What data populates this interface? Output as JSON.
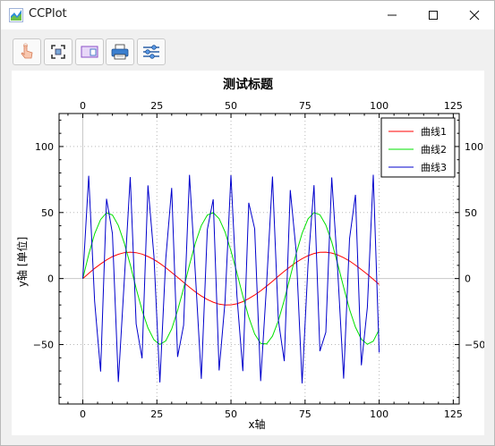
{
  "window": {
    "title": "CCPlot"
  },
  "toolbar": {
    "tools": [
      {
        "name": "pointer-icon"
      },
      {
        "name": "fit-view-icon"
      },
      {
        "name": "layout-icon"
      },
      {
        "name": "print-icon"
      },
      {
        "name": "settings-sliders-icon"
      }
    ]
  },
  "chart_data": {
    "type": "line",
    "title": "测试标题",
    "xlabel": "x轴",
    "ylabel": "y轴 [单位]",
    "xlim": [
      -8,
      127
    ],
    "ylim": [
      -95,
      125
    ],
    "x_ticks": [
      0,
      25,
      50,
      75,
      100,
      125
    ],
    "y_ticks": [
      -50,
      0,
      50,
      100
    ],
    "x_tick_labels": [
      "0",
      "25",
      "50",
      "75",
      "100",
      "125"
    ],
    "y_tick_labels": [
      "−50",
      "0",
      "50",
      "100"
    ],
    "grid": true,
    "legend_position": "top-right",
    "x": [
      0,
      2,
      4,
      6,
      8,
      10,
      12,
      14,
      16,
      18,
      20,
      22,
      24,
      26,
      28,
      30,
      32,
      34,
      36,
      38,
      40,
      42,
      44,
      46,
      48,
      50,
      52,
      54,
      56,
      58,
      60,
      62,
      64,
      66,
      68,
      70,
      72,
      74,
      76,
      78,
      80,
      82,
      84,
      86,
      88,
      90,
      92,
      94,
      96,
      98,
      100
    ],
    "series": [
      {
        "name": "曲线1",
        "color": "#ff0000",
        "values": [
          0,
          3.9,
          7.7,
          11.1,
          14.1,
          16.6,
          18.4,
          19.6,
          20.0,
          19.6,
          18.5,
          16.7,
          14.4,
          11.5,
          8.2,
          4.6,
          0.9,
          -2.9,
          -6.6,
          -10.1,
          -13.2,
          -15.9,
          -17.9,
          -19.4,
          -20.0,
          -19.9,
          -19.1,
          -17.5,
          -15.2,
          -12.5,
          -9.3,
          -5.8,
          -2.1,
          1.8,
          5.5,
          9.0,
          12.3,
          15.1,
          17.3,
          19.0,
          19.9,
          20.0,
          19.3,
          17.9,
          15.8,
          13.3,
          10.2,
          6.8,
          3.2,
          -0.6,
          -4.4
        ]
      },
      {
        "name": "曲线2",
        "color": "#00e000",
        "values": [
          0,
          18.2,
          33.8,
          44.7,
          49.8,
          48.2,
          40.2,
          27.0,
          10.5,
          -7.4,
          -24.0,
          -37.4,
          -46.4,
          -49.9,
          -47.2,
          -38.2,
          -24.2,
          -7.5,
          10.4,
          26.9,
          40.1,
          48.1,
          49.9,
          45.4,
          35.4,
          21.0,
          4.3,
          -13.2,
          -29.2,
          -42.0,
          -49.2,
          -49.5,
          -43.6,
          -32.0,
          -16.2,
          1.5,
          19.0,
          34.2,
          45.2,
          49.9,
          48.3,
          40.6,
          27.7,
          11.2,
          -6.6,
          -23.3,
          -36.8,
          -45.9,
          -49.8,
          -47.4,
          -38.6
        ]
      },
      {
        "name": "曲线3",
        "color": "#0000cc",
        "values": [
          0,
          77.9,
          -17.1,
          -70.4,
          60.4,
          34.1,
          -78.3,
          -1.9,
          76.9,
          -34.3,
          -60.4,
          70.6,
          16.7,
          -78.7,
          14.9,
          68.6,
          -59.3,
          -35.4,
          78.5,
          3.0,
          -76.0,
          37.0,
          60.0,
          -69.6,
          -17.5,
          78.3,
          -13.1,
          -70.1,
          57.4,
          37.8,
          -77.6,
          -4.7,
          77.3,
          -31.6,
          -62.6,
          67.0,
          20.3,
          -79.4,
          10.3,
          70.8,
          -55.0,
          -40.7,
          76.6,
          7.0,
          -75.8,
          30.2,
          63.4,
          -65.7,
          -21.8,
          78.6,
          -56.0
        ]
      }
    ]
  }
}
